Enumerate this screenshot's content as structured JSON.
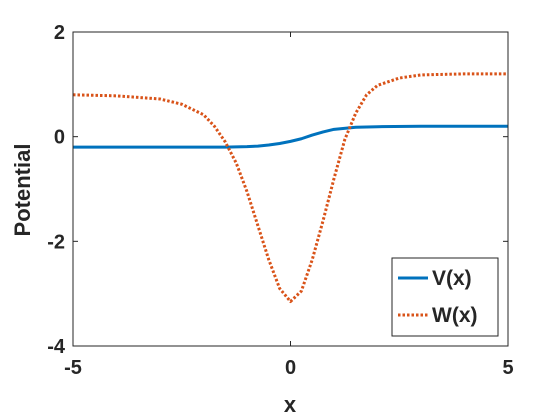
{
  "chart_data": {
    "type": "line",
    "xlabel": "x",
    "ylabel": "Potential",
    "xlim": [
      -5,
      5
    ],
    "ylim": [
      -4,
      2
    ],
    "xticks": [
      -5,
      0,
      5
    ],
    "yticks": [
      2,
      0,
      -2,
      -4
    ],
    "xtick_labels": [
      "-5",
      "0",
      "5"
    ],
    "ytick_labels": [
      "2",
      "0",
      "-2",
      "-4"
    ],
    "grid": false,
    "legend_position": "bottom-right",
    "series": [
      {
        "name": "V(x)",
        "color": "#0072BD",
        "style": "solid",
        "x": [
          -5,
          -4,
          -3,
          -2,
          -1.5,
          -1,
          -0.75,
          -0.5,
          -0.25,
          0,
          0.25,
          0.5,
          0.75,
          1,
          1.5,
          2,
          3,
          4,
          5
        ],
        "y": [
          -0.2,
          -0.2,
          -0.2,
          -0.2,
          -0.2,
          -0.19,
          -0.18,
          -0.16,
          -0.13,
          -0.09,
          -0.04,
          0.03,
          0.09,
          0.14,
          0.18,
          0.19,
          0.2,
          0.2,
          0.2
        ]
      },
      {
        "name": "W(x)",
        "color": "#D95319",
        "style": "dotted",
        "x": [
          -5,
          -4,
          -3,
          -2.5,
          -2,
          -1.75,
          -1.5,
          -1.25,
          -1,
          -0.75,
          -0.5,
          -0.25,
          0,
          0.25,
          0.5,
          0.75,
          1,
          1.25,
          1.5,
          1.75,
          2,
          2.5,
          3,
          4,
          5
        ],
        "y": [
          0.8,
          0.78,
          0.72,
          0.62,
          0.42,
          0.2,
          -0.1,
          -0.5,
          -1.05,
          -1.7,
          -2.35,
          -2.9,
          -3.15,
          -2.95,
          -2.35,
          -1.6,
          -0.8,
          -0.05,
          0.45,
          0.8,
          0.98,
          1.12,
          1.18,
          1.2,
          1.2
        ]
      }
    ]
  }
}
